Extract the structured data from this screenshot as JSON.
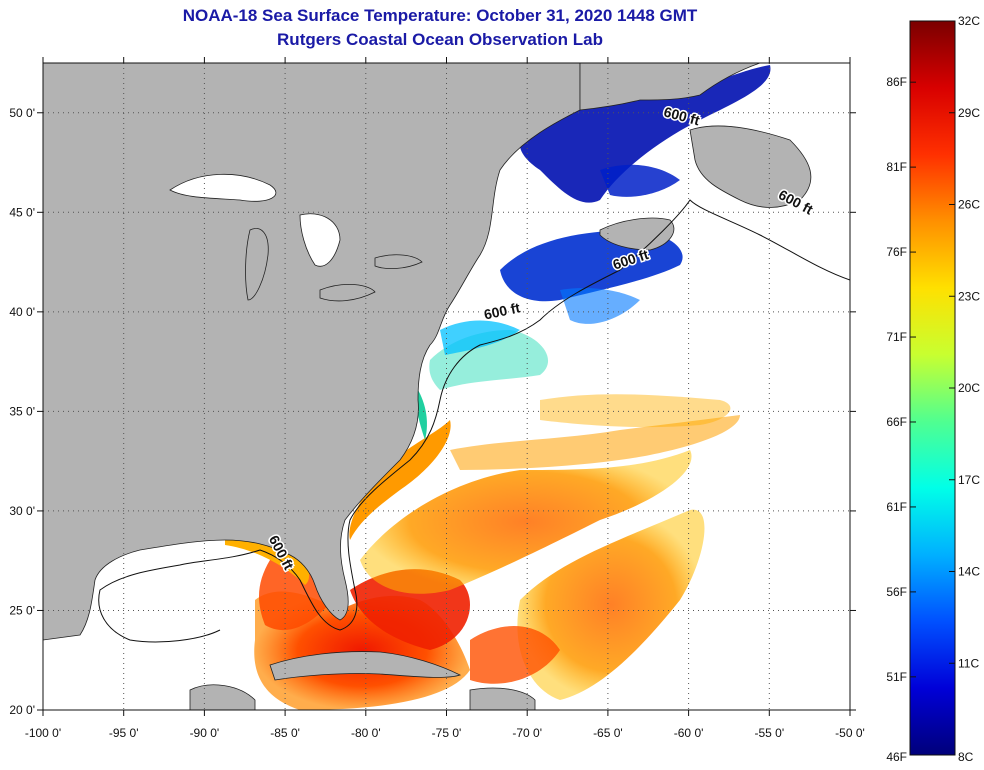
{
  "header": {
    "title": "NOAA-18 Sea Surface Temperature:  October 31, 2020 1448 GMT",
    "subtitle": "Rutgers Coastal Ocean Observation Lab"
  },
  "map": {
    "lon_range": [
      -100,
      -50
    ],
    "lat_range": [
      20,
      52.5
    ],
    "lon_ticks": [
      {
        "value": -100,
        "label": "-100 0'"
      },
      {
        "value": -95,
        "label": "-95 0'"
      },
      {
        "value": -90,
        "label": "-90 0'"
      },
      {
        "value": -85,
        "label": "-85 0'"
      },
      {
        "value": -80,
        "label": "-80 0'"
      },
      {
        "value": -75,
        "label": "-75 0'"
      },
      {
        "value": -70,
        "label": "-70 0'"
      },
      {
        "value": -65,
        "label": "-65 0'"
      },
      {
        "value": -60,
        "label": "-60 0'"
      },
      {
        "value": -55,
        "label": "-55 0'"
      },
      {
        "value": -50,
        "label": "-50 0'"
      }
    ],
    "lat_ticks": [
      {
        "value": 20,
        "label": "20 0'"
      },
      {
        "value": 25,
        "label": "25 0'"
      },
      {
        "value": 30,
        "label": "30 0'"
      },
      {
        "value": 35,
        "label": "35 0'"
      },
      {
        "value": 40,
        "label": "40 0'"
      },
      {
        "value": 45,
        "label": "45 0'"
      },
      {
        "value": 50,
        "label": "50 0'"
      }
    ],
    "contour_labels": [
      {
        "text": "600 ft",
        "lon": -60.5,
        "lat": 49.6,
        "angle": 15
      },
      {
        "text": "600 ft",
        "lon": -53.5,
        "lat": 45.3,
        "angle": 28
      },
      {
        "text": "600 ft",
        "lon": -63.5,
        "lat": 42.4,
        "angle": -18
      },
      {
        "text": "600 ft",
        "lon": -71.5,
        "lat": 39.8,
        "angle": -12
      },
      {
        "text": "600 ft",
        "lon": -85.5,
        "lat": 27.8,
        "angle": 62
      }
    ],
    "land_color": "#b3b3b3",
    "cloud_color": "#ffffff"
  },
  "colorbar": {
    "range_c": [
      8,
      32
    ],
    "celsius_ticks": [
      {
        "value": 32,
        "label": "32C"
      },
      {
        "value": 29,
        "label": "29C"
      },
      {
        "value": 26,
        "label": "26C"
      },
      {
        "value": 23,
        "label": "23C"
      },
      {
        "value": 20,
        "label": "20C"
      },
      {
        "value": 17,
        "label": "17C"
      },
      {
        "value": 14,
        "label": "14C"
      },
      {
        "value": 11,
        "label": "11C"
      },
      {
        "value": 8,
        "label": "8C"
      }
    ],
    "fahrenheit_ticks": [
      {
        "value": 86,
        "label": "86F"
      },
      {
        "value": 81,
        "label": "81F"
      },
      {
        "value": 76,
        "label": "76F"
      },
      {
        "value": 71,
        "label": "71F"
      },
      {
        "value": 66,
        "label": "66F"
      },
      {
        "value": 61,
        "label": "61F"
      },
      {
        "value": 56,
        "label": "56F"
      },
      {
        "value": 51,
        "label": "51F"
      },
      {
        "value": 46,
        "label": "46F"
      }
    ],
    "colors": [
      "#00007a",
      "#0000d8",
      "#0050ff",
      "#00b0ff",
      "#00ffe8",
      "#50ff90",
      "#c8ff30",
      "#ffe000",
      "#ff9000",
      "#ff3000",
      "#d80000",
      "#7a0000"
    ]
  }
}
